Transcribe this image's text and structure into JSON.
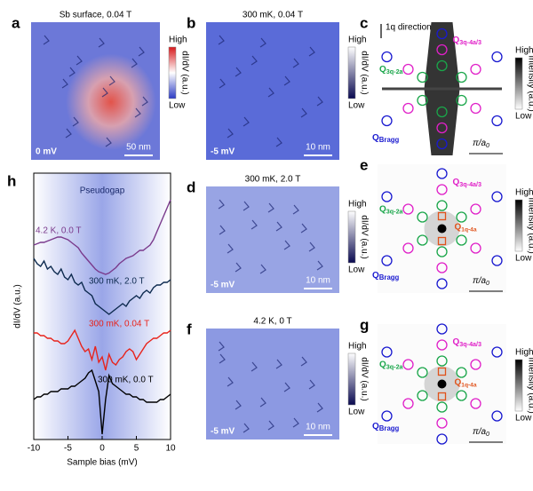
{
  "panels": {
    "a": {
      "letter": "a",
      "title": "Sb surface, 0.04 T",
      "high": "High",
      "low": "Low",
      "colorbar_label": "dI/dV (a.u.)",
      "scale_bar": "50 nm",
      "bias": "0 mV"
    },
    "b": {
      "letter": "b",
      "title": "300 mK, 0.04 T",
      "high": "High",
      "low": "Low",
      "colorbar_label": "dI/dV (a.u.)",
      "scale_bar": "10 nm",
      "bias": "-5 mV"
    },
    "d": {
      "letter": "d",
      "title": "300 mK, 2.0 T",
      "high": "High",
      "low": "Low",
      "colorbar_label": "dI/dV (a.u.)",
      "scale_bar": "10 nm",
      "bias": "-5 mV"
    },
    "f": {
      "letter": "f",
      "title": "4.2 K, 0 T",
      "high": "High",
      "low": "Low",
      "colorbar_label": "dI/dV (a.u.)",
      "scale_bar": "10 nm",
      "bias": "-5 mV"
    },
    "c": {
      "letter": "c",
      "direction": "1q direction",
      "high": "High",
      "low": "Low",
      "colorbar_label": "Intensity (a.u.)",
      "q_4a3": {
        "main": "Q",
        "sub": "3q-4a/3"
      },
      "q_2a": {
        "main": "Q",
        "sub": "3q-2a"
      },
      "q_bragg": {
        "main": "Q",
        "sub": "Bragg"
      },
      "scale": {
        "main": "π/a",
        "sub": "0"
      }
    },
    "e": {
      "letter": "e",
      "high": "High",
      "low": "Low",
      "colorbar_label": "Intensity (a.u.)",
      "q_4a3": {
        "main": "Q",
        "sub": "3q-4a/3"
      },
      "q_2a": {
        "main": "Q",
        "sub": "3q-2a"
      },
      "q_4a": {
        "main": "Q",
        "sub": "1q-4a"
      },
      "q_bragg": {
        "main": "Q",
        "sub": "Bragg"
      },
      "scale": {
        "main": "π/a",
        "sub": "0"
      }
    },
    "g": {
      "letter": "g",
      "high": "High",
      "low": "Low",
      "colorbar_label": "Intensity (a.u.)",
      "q_4a3": {
        "main": "Q",
        "sub": "3q-4a/3"
      },
      "q_2a": {
        "main": "Q",
        "sub": "3q-2a"
      },
      "q_4a": {
        "main": "Q",
        "sub": "1q-4a"
      },
      "q_bragg": {
        "main": "Q",
        "sub": "Bragg"
      },
      "scale": {
        "main": "π/a",
        "sub": "0"
      }
    }
  },
  "chart_data": {
    "type": "line",
    "panel_letter": "h",
    "annotation": "Pseudogap",
    "xlabel": "Sample bias (mV)",
    "ylabel": "dI/dV (a.u.)",
    "xlim": [
      -10,
      10
    ],
    "xticks": [
      -10,
      -5,
      0,
      5,
      10
    ],
    "ylim": [
      0,
      10
    ],
    "x": [
      -10,
      -9.5,
      -9,
      -8.5,
      -8,
      -7.5,
      -7,
      -6.5,
      -6,
      -5.5,
      -5,
      -4.5,
      -4,
      -3.5,
      -3,
      -2.5,
      -2,
      -1.5,
      -1,
      -0.5,
      0,
      0.5,
      1,
      1.5,
      2,
      2.5,
      3,
      3.5,
      4,
      4.5,
      5,
      5.5,
      6,
      6.5,
      7,
      7.5,
      8,
      8.5,
      9,
      9.5,
      10
    ],
    "series": [
      {
        "name": "4.2 K, 0.0 T",
        "color": "#7a3a8c",
        "values": [
          7.3,
          7.35,
          7.4,
          7.4,
          7.45,
          7.5,
          7.55,
          7.6,
          7.6,
          7.55,
          7.5,
          7.4,
          7.3,
          7.2,
          7.0,
          6.85,
          6.7,
          6.55,
          6.4,
          6.3,
          6.25,
          6.2,
          6.25,
          6.35,
          6.45,
          6.6,
          6.7,
          6.8,
          6.85,
          6.9,
          7.0,
          7.1,
          7.1,
          7.2,
          7.3,
          7.5,
          7.8,
          8.1,
          8.4,
          8.7,
          9.0
        ]
      },
      {
        "name": "300 mK, 2.0 T",
        "color": "#0d2a4f",
        "values": [
          6.8,
          6.6,
          6.5,
          6.7,
          6.4,
          6.5,
          6.3,
          6.2,
          6.4,
          6.1,
          6.0,
          6.2,
          5.9,
          5.8,
          5.9,
          5.6,
          5.5,
          5.4,
          5.1,
          5.0,
          4.9,
          4.8,
          4.7,
          4.8,
          4.9,
          5.0,
          5.1,
          5.0,
          5.2,
          5.3,
          5.4,
          5.3,
          5.5,
          5.6,
          5.5,
          5.7,
          5.8,
          5.8,
          5.9,
          5.9,
          6.0
        ]
      },
      {
        "name": "300 mK, 0.04 T",
        "color": "#e8231b",
        "values": [
          4.0,
          4.0,
          3.9,
          3.9,
          3.8,
          3.8,
          3.7,
          3.7,
          3.6,
          3.6,
          3.7,
          3.9,
          4.1,
          3.8,
          3.5,
          3.3,
          3.4,
          3.0,
          3.5,
          2.9,
          3.1,
          2.6,
          3.2,
          2.9,
          2.8,
          3.0,
          3.1,
          3.3,
          3.4,
          3.3,
          3.0,
          3.2,
          3.4,
          3.6,
          3.7,
          3.8,
          3.8,
          3.9,
          4.0,
          4.0,
          4.1
        ]
      },
      {
        "name": "300 mK, 0.0 T",
        "color": "#000000",
        "values": [
          1.5,
          1.6,
          1.6,
          1.7,
          1.7,
          1.8,
          1.8,
          1.8,
          1.9,
          1.9,
          1.9,
          2.0,
          2.0,
          2.1,
          2.2,
          2.3,
          2.5,
          2.6,
          2.2,
          1.8,
          0.2,
          1.5,
          2.4,
          2.1,
          2.0,
          1.9,
          1.8,
          1.7,
          1.7,
          1.6,
          1.6,
          1.5,
          1.5,
          1.4,
          1.4,
          1.4,
          1.4,
          1.5,
          1.5,
          1.6,
          1.7
        ]
      }
    ]
  }
}
